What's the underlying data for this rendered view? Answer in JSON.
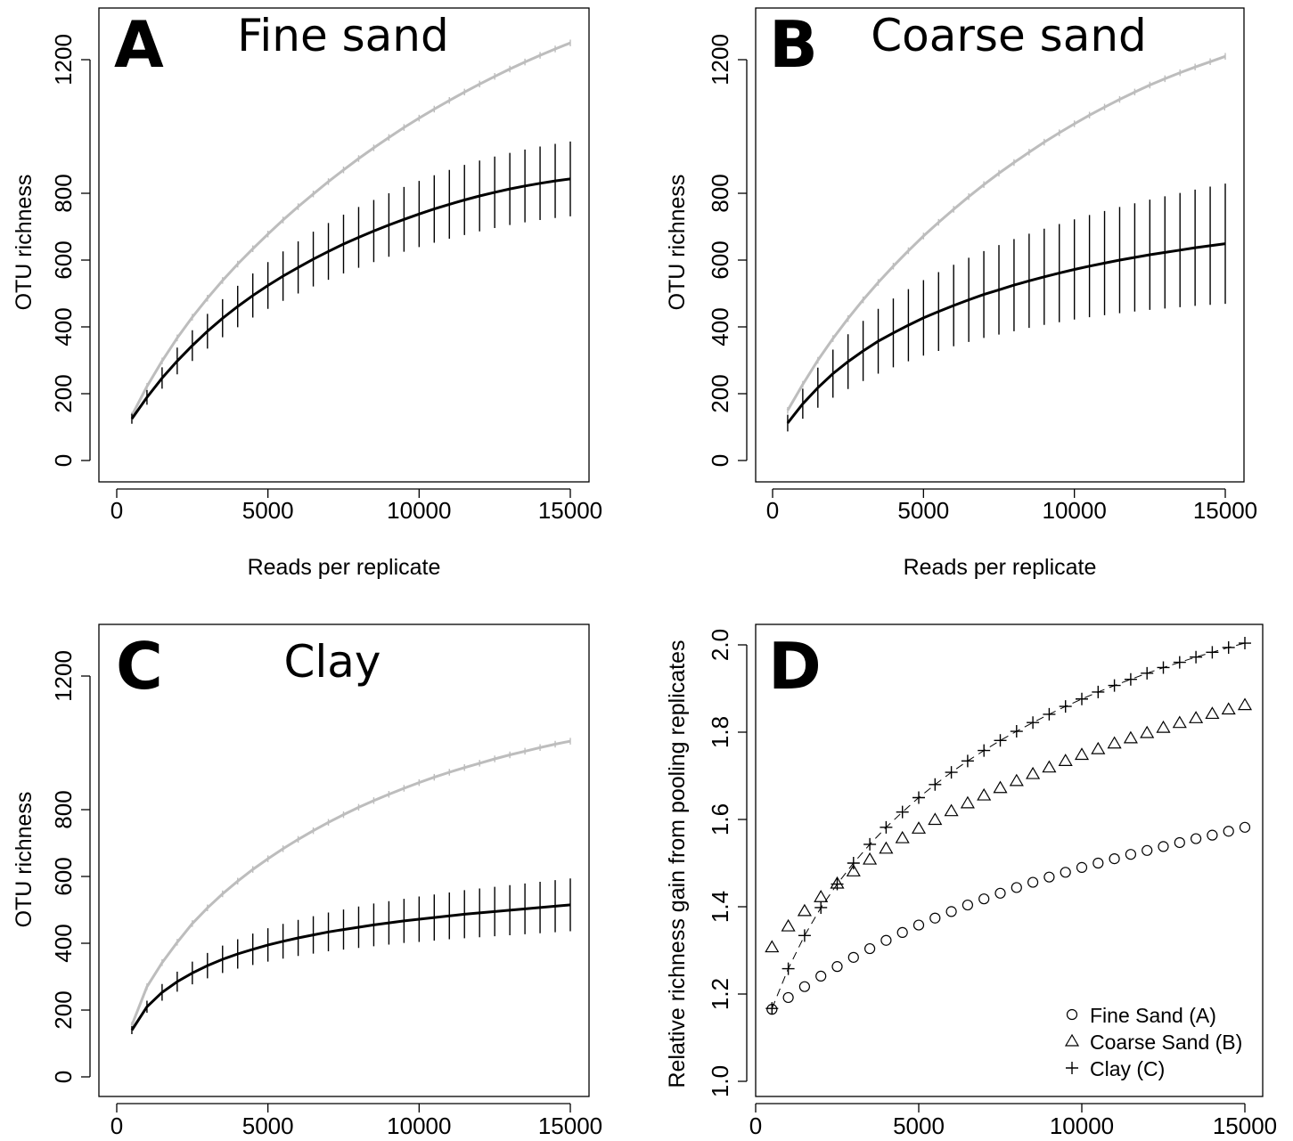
{
  "chart_data": [
    {
      "type": "line",
      "panel_letter": "A",
      "title": "Fine sand",
      "xlabel": "Reads per replicate",
      "ylabel": "OTU richness",
      "xlim": [
        0,
        15000
      ],
      "ylim": [
        0,
        1200
      ],
      "x_ticks": [
        "0",
        "5000",
        "10000",
        "15000"
      ],
      "y_ticks": [
        "0",
        "200",
        "400",
        "600",
        "800",
        "1200"
      ],
      "x": [
        500,
        1000,
        1500,
        2000,
        2500,
        3000,
        3500,
        4000,
        4500,
        5000,
        5500,
        6000,
        6500,
        7000,
        7500,
        8000,
        8500,
        9000,
        9500,
        10000,
        10500,
        11000,
        11500,
        12000,
        12500,
        13000,
        13500,
        14000,
        14500,
        15000
      ],
      "series": [
        {
          "color": "#bdbdbd",
          "values": [
            135,
            222,
            298,
            367,
            429,
            486,
            539,
            588,
            634,
            678,
            720,
            760,
            798,
            835,
            870,
            904,
            936,
            967,
            997,
            1025,
            1052,
            1078,
            1103,
            1127,
            1150,
            1172,
            1193,
            1213,
            1232,
            1250
          ],
          "errors": [
            10,
            10,
            10,
            10,
            10,
            10,
            10,
            10,
            10,
            10,
            10,
            10,
            10,
            10,
            10,
            10,
            10,
            10,
            10,
            10,
            10,
            10,
            10,
            10,
            10,
            10,
            10,
            10,
            10,
            10
          ]
        },
        {
          "color": "#000000",
          "values": [
            125,
            189,
            247,
            298,
            344,
            387,
            426,
            461,
            494,
            524,
            552,
            578,
            603,
            626,
            648,
            668,
            687,
            705,
            722,
            738,
            753,
            767,
            780,
            792,
            803,
            813,
            822,
            830,
            837,
            843
          ],
          "errors": [
            15,
            22,
            32,
            40,
            46,
            52,
            57,
            62,
            66,
            70,
            74,
            78,
            82,
            85,
            88,
            91,
            93,
            95,
            97,
            99,
            101,
            103,
            105,
            106,
            107,
            108,
            109,
            110,
            111,
            112
          ]
        }
      ]
    },
    {
      "type": "line",
      "panel_letter": "B",
      "title": "Coarse sand",
      "xlabel": "Reads per replicate",
      "ylabel": "OTU richness",
      "xlim": [
        0,
        15000
      ],
      "ylim": [
        0,
        1200
      ],
      "x_ticks": [
        "0",
        "5000",
        "10000",
        "15000"
      ],
      "y_ticks": [
        "0",
        "200",
        "400",
        "600",
        "800",
        "1200"
      ],
      "x": [
        500,
        1000,
        1500,
        2000,
        2500,
        3000,
        3500,
        4000,
        4500,
        5000,
        5500,
        6000,
        6500,
        7000,
        7500,
        8000,
        8500,
        9000,
        9500,
        10000,
        10500,
        11000,
        11500,
        12000,
        12500,
        13000,
        13500,
        14000,
        14500,
        15000
      ],
      "series": [
        {
          "color": "#bdbdbd",
          "values": [
            150,
            228,
            300,
            365,
            425,
            481,
            533,
            582,
            628,
            672,
            713,
            752,
            790,
            826,
            860,
            892,
            923,
            953,
            981,
            1008,
            1034,
            1058,
            1081,
            1103,
            1124,
            1143,
            1161,
            1178,
            1194,
            1210
          ],
          "errors": [
            10,
            10,
            10,
            10,
            10,
            10,
            10,
            10,
            10,
            10,
            10,
            10,
            10,
            10,
            10,
            10,
            10,
            10,
            10,
            10,
            10,
            10,
            10,
            10,
            10,
            10,
            10,
            10,
            10,
            10
          ]
        },
        {
          "color": "#000000",
          "values": [
            112,
            170,
            218,
            260,
            296,
            328,
            357,
            382,
            405,
            427,
            446,
            464,
            481,
            497,
            511,
            525,
            538,
            550,
            561,
            572,
            582,
            591,
            600,
            608,
            616,
            623,
            630,
            637,
            643,
            649
          ],
          "errors": [
            25,
            45,
            60,
            72,
            82,
            90,
            97,
            103,
            108,
            113,
            118,
            122,
            126,
            130,
            134,
            138,
            141,
            144,
            147,
            150,
            153,
            156,
            159,
            162,
            165,
            168,
            171,
            174,
            177,
            180
          ]
        }
      ]
    },
    {
      "type": "line",
      "panel_letter": "C",
      "title": "Clay",
      "xlabel": "",
      "ylabel": "OTU richness",
      "xlim": [
        0,
        15000
      ],
      "ylim": [
        0,
        1200
      ],
      "x_ticks": [
        "0",
        "5000",
        "10000",
        "15000"
      ],
      "y_ticks": [
        "0",
        "200",
        "400",
        "600",
        "800",
        "1200"
      ],
      "x": [
        500,
        1000,
        1500,
        2000,
        2500,
        3000,
        3500,
        4000,
        4500,
        5000,
        5500,
        6000,
        6500,
        7000,
        7500,
        8000,
        8500,
        9000,
        9500,
        10000,
        10500,
        11000,
        11500,
        12000,
        12500,
        13000,
        13500,
        14000,
        14500,
        15000
      ],
      "series": [
        {
          "color": "#bdbdbd",
          "values": [
            155,
            270,
            342,
            403,
            459,
            506,
            548,
            586,
            621,
            653,
            683,
            711,
            737,
            762,
            785,
            807,
            827,
            846,
            864,
            881,
            897,
            912,
            926,
            939,
            952,
            964,
            975,
            986,
            996,
            1005
          ],
          "errors": [
            10,
            10,
            10,
            10,
            10,
            10,
            10,
            10,
            10,
            10,
            10,
            10,
            10,
            10,
            10,
            10,
            10,
            10,
            10,
            10,
            10,
            10,
            10,
            10,
            10,
            10,
            10,
            10,
            10,
            10
          ]
        },
        {
          "color": "#000000",
          "values": [
            140,
            210,
            253,
            285,
            311,
            333,
            352,
            368,
            382,
            395,
            406,
            416,
            425,
            434,
            441,
            448,
            455,
            461,
            467,
            472,
            477,
            482,
            487,
            491,
            495,
            499,
            503,
            507,
            511,
            515
          ],
          "errors": [
            12,
            18,
            25,
            30,
            34,
            38,
            41,
            44,
            47,
            50,
            52,
            54,
            56,
            58,
            60,
            62,
            64,
            65,
            66,
            68,
            69,
            70,
            72,
            73,
            74,
            75,
            76,
            77,
            78,
            79
          ]
        }
      ]
    },
    {
      "type": "scatter",
      "panel_letter": "D",
      "title": "",
      "xlabel": "",
      "ylabel": "Relative richness gain from pooling replicates",
      "xlim": [
        0,
        15000
      ],
      "ylim": [
        1.0,
        2.0
      ],
      "x_ticks": [
        "0",
        "5000",
        "10000",
        "15000"
      ],
      "y_ticks": [
        "1.0",
        "1.2",
        "1.4",
        "1.6",
        "1.8",
        "2.0"
      ],
      "legend_position": "bottom-right",
      "x": [
        500,
        1000,
        1500,
        2000,
        2500,
        3000,
        3500,
        4000,
        4500,
        5000,
        5500,
        6000,
        6500,
        7000,
        7500,
        8000,
        8500,
        9000,
        9500,
        10000,
        10500,
        11000,
        11500,
        12000,
        12500,
        13000,
        13500,
        14000,
        14500,
        15000
      ],
      "series": [
        {
          "name": "Fine Sand (A)",
          "marker": "circle",
          "values": [
            1.165,
            1.192,
            1.217,
            1.241,
            1.263,
            1.284,
            1.304,
            1.323,
            1.341,
            1.358,
            1.374,
            1.389,
            1.404,
            1.418,
            1.431,
            1.444,
            1.456,
            1.468,
            1.479,
            1.49,
            1.5,
            1.51,
            1.52,
            1.529,
            1.538,
            1.547,
            1.556,
            1.564,
            1.573,
            1.582
          ]
        },
        {
          "name": "Coarse Sand (B)",
          "marker": "triangle",
          "values": [
            1.307,
            1.355,
            1.39,
            1.422,
            1.453,
            1.481,
            1.508,
            1.533,
            1.557,
            1.579,
            1.599,
            1.619,
            1.637,
            1.655,
            1.672,
            1.688,
            1.704,
            1.719,
            1.734,
            1.748,
            1.761,
            1.774,
            1.786,
            1.798,
            1.81,
            1.821,
            1.832,
            1.842,
            1.852,
            1.862
          ]
        },
        {
          "name": "Clay (C)",
          "marker": "plus",
          "line": "dashed",
          "values": [
            1.167,
            1.258,
            1.334,
            1.398,
            1.452,
            1.5,
            1.543,
            1.582,
            1.617,
            1.65,
            1.68,
            1.708,
            1.734,
            1.758,
            1.781,
            1.802,
            1.822,
            1.841,
            1.859,
            1.876,
            1.892,
            1.907,
            1.921,
            1.935,
            1.948,
            1.96,
            1.972,
            1.983,
            1.994,
            2.004
          ]
        }
      ]
    }
  ]
}
